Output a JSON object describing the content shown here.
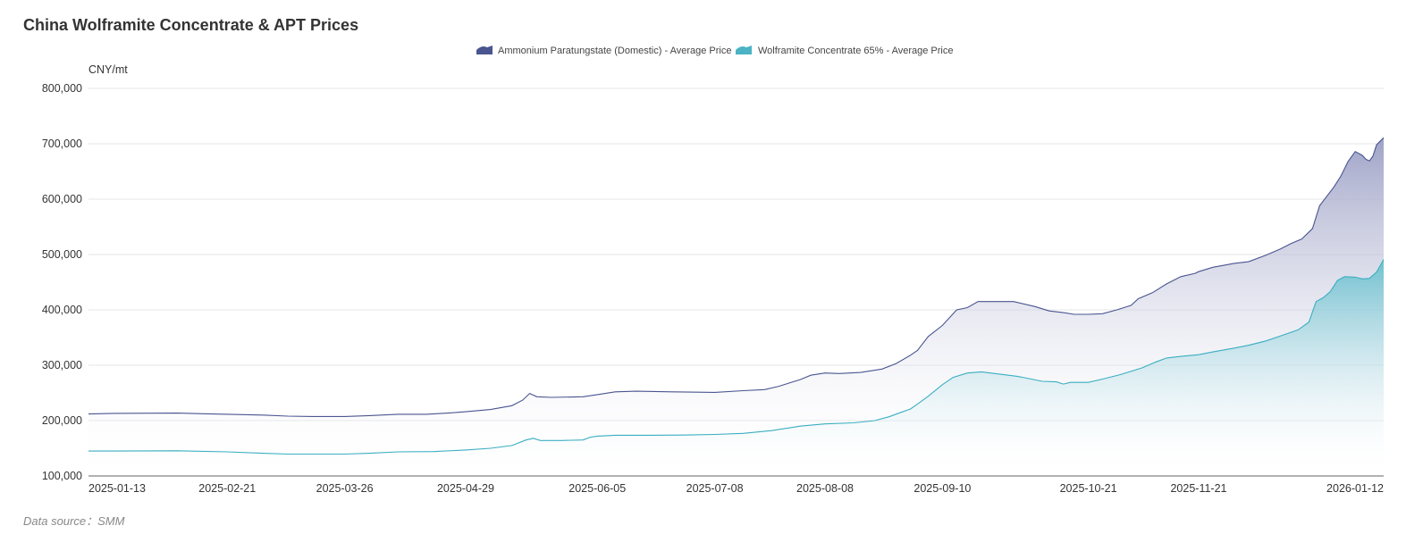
{
  "chart_data": {
    "type": "area",
    "title": "China Wolframite Concentrate & APT Prices",
    "ylabel": "CNY/mt",
    "xlabel": "",
    "ylim": [
      100000,
      800000
    ],
    "yticks": [
      100000,
      200000,
      300000,
      400000,
      500000,
      600000,
      700000,
      800000
    ],
    "ytick_labels": [
      "100,000",
      "200,000",
      "300,000",
      "400,000",
      "500,000",
      "600,000",
      "700,000",
      "800,000"
    ],
    "x_range": [
      "2025-01-13",
      "2026-01-12"
    ],
    "x_tick_labels": [
      "2025-01-13",
      "2025-02-21",
      "2025-03-26",
      "2025-04-29",
      "2025-06-05",
      "2025-07-08",
      "2025-08-08",
      "2025-09-10",
      "2025-10-21",
      "2025-11-21",
      "2026-01-12"
    ],
    "grid": true,
    "legend_placement": "top-center",
    "series": [
      {
        "name": "Ammonium Paratungstate (Domestic) - Average Price",
        "color": "#4a5590",
        "points": [
          [
            "2025-01-13",
            212000
          ],
          [
            "2025-01-20",
            213000
          ],
          [
            "2025-02-07",
            213500
          ],
          [
            "2025-02-14",
            212500
          ],
          [
            "2025-02-21",
            211500
          ],
          [
            "2025-03-03",
            210000
          ],
          [
            "2025-03-10",
            208000
          ],
          [
            "2025-03-17",
            207500
          ],
          [
            "2025-03-26",
            207500
          ],
          [
            "2025-04-02",
            209000
          ],
          [
            "2025-04-10",
            211500
          ],
          [
            "2025-04-18",
            211500
          ],
          [
            "2025-04-25",
            214000
          ],
          [
            "2025-04-29",
            216000
          ],
          [
            "2025-05-06",
            220000
          ],
          [
            "2025-05-12",
            227000
          ],
          [
            "2025-05-15",
            237000
          ],
          [
            "2025-05-17",
            249000
          ],
          [
            "2025-05-19",
            243000
          ],
          [
            "2025-05-23",
            242000
          ],
          [
            "2025-06-01",
            243000
          ],
          [
            "2025-06-05",
            247000
          ],
          [
            "2025-06-10",
            252000
          ],
          [
            "2025-06-16",
            253000
          ],
          [
            "2025-06-26",
            252000
          ],
          [
            "2025-07-08",
            251000
          ],
          [
            "2025-07-16",
            254000
          ],
          [
            "2025-07-22",
            256000
          ],
          [
            "2025-07-26",
            262000
          ],
          [
            "2025-08-01",
            274000
          ],
          [
            "2025-08-04",
            282000
          ],
          [
            "2025-08-08",
            286000
          ],
          [
            "2025-08-12",
            285000
          ],
          [
            "2025-08-18",
            287000
          ],
          [
            "2025-08-24",
            293000
          ],
          [
            "2025-08-28",
            303000
          ],
          [
            "2025-09-01",
            318000
          ],
          [
            "2025-09-03",
            327000
          ],
          [
            "2025-09-06",
            352000
          ],
          [
            "2025-09-10",
            372000
          ],
          [
            "2025-09-14",
            400000
          ],
          [
            "2025-09-17",
            404000
          ],
          [
            "2025-09-20",
            415000
          ],
          [
            "2025-09-25",
            415000
          ],
          [
            "2025-09-30",
            415000
          ],
          [
            "2025-10-06",
            406000
          ],
          [
            "2025-10-10",
            398000
          ],
          [
            "2025-10-14",
            395000
          ],
          [
            "2025-10-17",
            392000
          ],
          [
            "2025-10-21",
            392000
          ],
          [
            "2025-10-25",
            393000
          ],
          [
            "2025-10-29",
            400000
          ],
          [
            "2025-11-02",
            408000
          ],
          [
            "2025-11-04",
            420000
          ],
          [
            "2025-11-08",
            431000
          ],
          [
            "2025-11-12",
            447000
          ],
          [
            "2025-11-16",
            460000
          ],
          [
            "2025-11-20",
            466000
          ],
          [
            "2025-11-21",
            469000
          ],
          [
            "2025-11-25",
            477000
          ],
          [
            "2025-12-01",
            484000
          ],
          [
            "2025-12-05",
            487000
          ],
          [
            "2025-12-10",
            499000
          ],
          [
            "2025-12-14",
            510000
          ],
          [
            "2025-12-17",
            520000
          ],
          [
            "2025-12-20",
            528000
          ],
          [
            "2025-12-23",
            547000
          ],
          [
            "2025-12-25",
            588000
          ],
          [
            "2025-12-27",
            605000
          ],
          [
            "2025-12-29",
            622000
          ],
          [
            "2025-12-31",
            642000
          ],
          [
            "2026-01-02",
            668000
          ],
          [
            "2026-01-04",
            686000
          ],
          [
            "2026-01-06",
            679000
          ],
          [
            "2026-01-07",
            672000
          ],
          [
            "2026-01-08",
            669000
          ],
          [
            "2026-01-09",
            678000
          ],
          [
            "2026-01-10",
            698000
          ],
          [
            "2026-01-12",
            711000
          ]
        ]
      },
      {
        "name": "Wolframite Concentrate 65% - Average Price",
        "color": "#3aaec0",
        "points": [
          [
            "2025-01-13",
            145000
          ],
          [
            "2025-02-07",
            145500
          ],
          [
            "2025-02-21",
            143500
          ],
          [
            "2025-03-03",
            141000
          ],
          [
            "2025-03-10",
            139500
          ],
          [
            "2025-03-26",
            139500
          ],
          [
            "2025-04-02",
            141000
          ],
          [
            "2025-04-10",
            143500
          ],
          [
            "2025-04-20",
            144000
          ],
          [
            "2025-04-29",
            147000
          ],
          [
            "2025-05-06",
            150000
          ],
          [
            "2025-05-12",
            155000
          ],
          [
            "2025-05-16",
            165000
          ],
          [
            "2025-05-18",
            168000
          ],
          [
            "2025-05-20",
            164000
          ],
          [
            "2025-05-26",
            164000
          ],
          [
            "2025-06-01",
            165000
          ],
          [
            "2025-06-03",
            170000
          ],
          [
            "2025-06-05",
            172000
          ],
          [
            "2025-06-10",
            173500
          ],
          [
            "2025-06-20",
            173500
          ],
          [
            "2025-07-01",
            174000
          ],
          [
            "2025-07-08",
            175000
          ],
          [
            "2025-07-16",
            177000
          ],
          [
            "2025-07-24",
            182000
          ],
          [
            "2025-08-01",
            190000
          ],
          [
            "2025-08-08",
            194000
          ],
          [
            "2025-08-16",
            196000
          ],
          [
            "2025-08-22",
            200000
          ],
          [
            "2025-08-26",
            207000
          ],
          [
            "2025-08-29",
            214000
          ],
          [
            "2025-09-01",
            221000
          ],
          [
            "2025-09-03",
            230000
          ],
          [
            "2025-09-06",
            244000
          ],
          [
            "2025-09-10",
            265000
          ],
          [
            "2025-09-13",
            278000
          ],
          [
            "2025-09-17",
            286000
          ],
          [
            "2025-09-21",
            288000
          ],
          [
            "2025-09-26",
            284000
          ],
          [
            "2025-10-01",
            280000
          ],
          [
            "2025-10-05",
            275000
          ],
          [
            "2025-10-08",
            271000
          ],
          [
            "2025-10-12",
            270000
          ],
          [
            "2025-10-14",
            266000
          ],
          [
            "2025-10-16",
            269000
          ],
          [
            "2025-10-21",
            269000
          ],
          [
            "2025-10-25",
            275000
          ],
          [
            "2025-10-30",
            283000
          ],
          [
            "2025-11-05",
            295000
          ],
          [
            "2025-11-09",
            306000
          ],
          [
            "2025-11-12",
            313000
          ],
          [
            "2025-11-16",
            316000
          ],
          [
            "2025-11-21",
            319000
          ],
          [
            "2025-11-25",
            324000
          ],
          [
            "2025-12-01",
            331000
          ],
          [
            "2025-12-05",
            336000
          ],
          [
            "2025-12-10",
            344000
          ],
          [
            "2025-12-15",
            355000
          ],
          [
            "2025-12-19",
            364000
          ],
          [
            "2025-12-22",
            378000
          ],
          [
            "2025-12-24",
            415000
          ],
          [
            "2025-12-26",
            422000
          ],
          [
            "2025-12-28",
            433000
          ],
          [
            "2025-12-30",
            453000
          ],
          [
            "2026-01-01",
            460000
          ],
          [
            "2026-01-04",
            459000
          ],
          [
            "2026-01-06",
            456000
          ],
          [
            "2026-01-08",
            457000
          ],
          [
            "2026-01-10",
            468000
          ],
          [
            "2026-01-12",
            491000
          ]
        ]
      }
    ],
    "data_source": "Data source：SMM"
  }
}
